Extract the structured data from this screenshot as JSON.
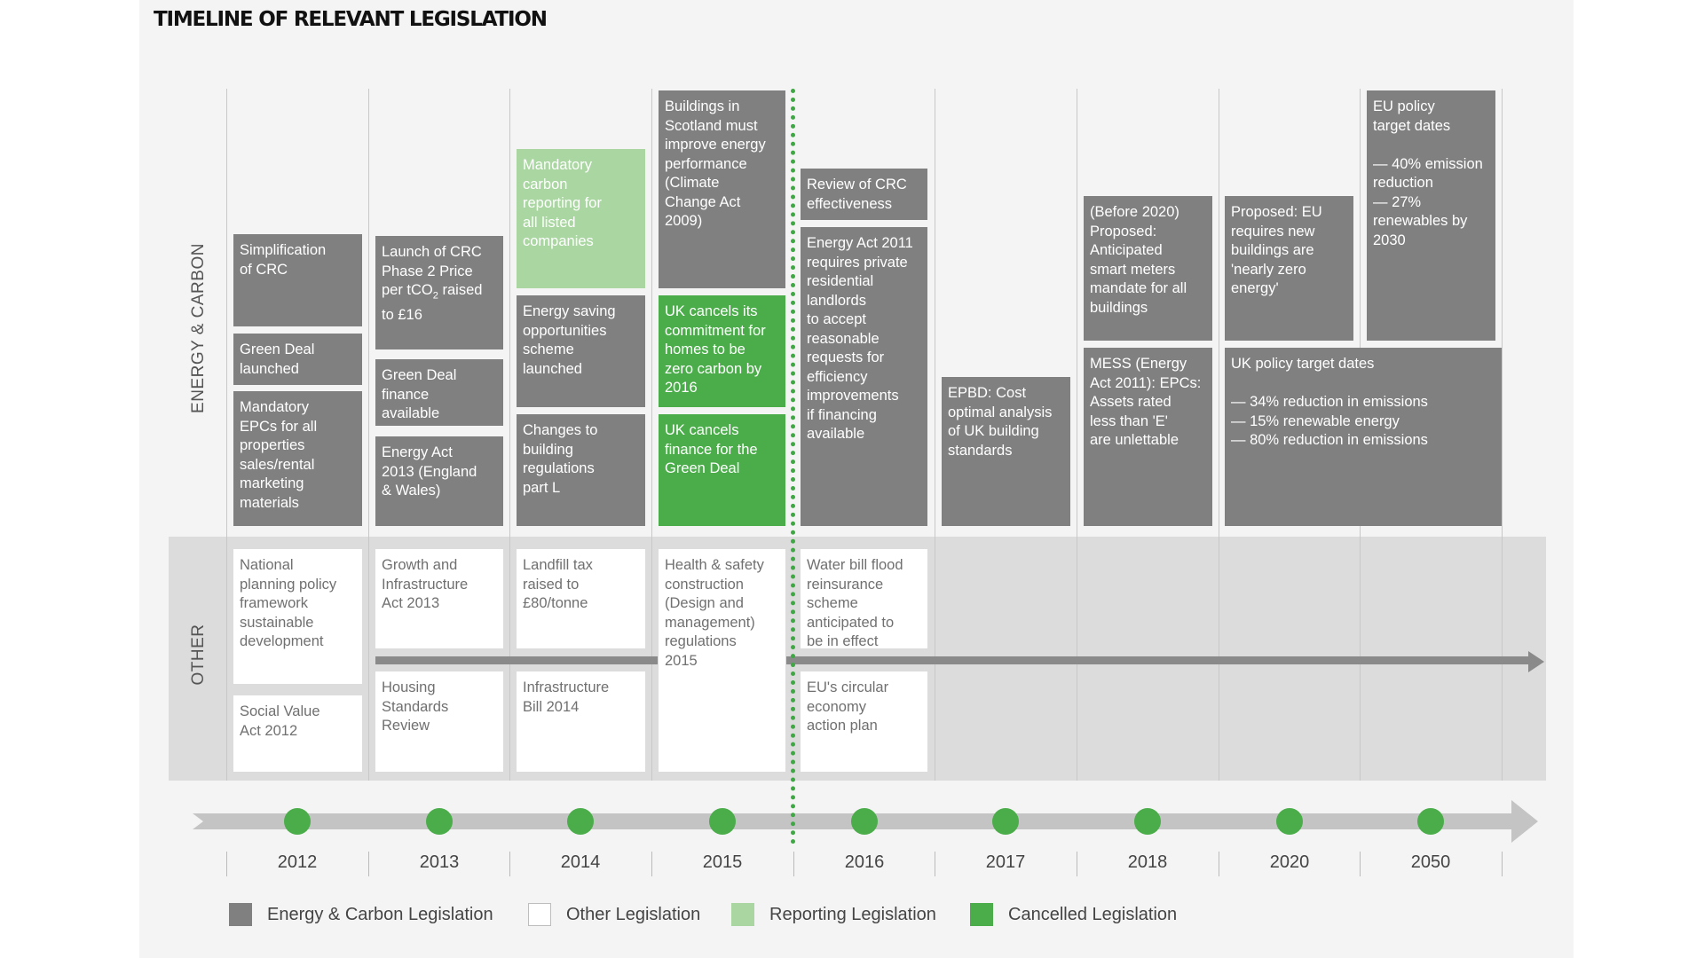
{
  "title": "TIMELINE OF RELEVANT LEGISLATION",
  "section_labels": {
    "energy": "ENERGY & CARBON",
    "other": "OTHER"
  },
  "years": [
    "2012",
    "2013",
    "2014",
    "2015",
    "2016",
    "2017",
    "2018",
    "2020",
    "2050"
  ],
  "energy_boxes": {
    "simplification_crc": "Simplification\nof CRC",
    "green_deal_launched": "Green Deal\nlaunched",
    "mandatory_epcs": "Mandatory\nEPCs for all\nproperties\nsales/rental\nmarketing\nmaterials",
    "crc_phase2_pre": "Launch of CRC\nPhase 2 Price\nper tCO",
    "crc_phase2_sub": "2",
    "crc_phase2_post": " raised\nto £16",
    "green_deal_finance": "Green Deal\nfinance\navailable",
    "energy_act_2013": "Energy Act\n2013 (England\n& Wales)",
    "mandatory_carbon_reporting": "Mandatory\ncarbon\nreporting for\nall listed\ncompanies",
    "energy_saving_scheme": "Energy saving\nopportunities\nscheme\nlaunched",
    "building_regs_part_l": "Changes to\nbuilding\nregulations\npart L",
    "scotland_buildings": "Buildings in\nScotland must\nimprove energy\nperformance\n(Climate\nChange Act\n2009)",
    "zero_carbon_cancel": "UK cancels its\ncommitment for\nhomes to be\nzero carbon by\n2016",
    "green_deal_cancel": "UK cancels\nfinance for the\nGreen Deal",
    "crc_review": "Review of CRC\neffectiveness",
    "energy_act_2011": "Energy Act 2011\nrequires private\nresidential\nlandlords\nto accept\nreasonable\nrequests for\nefficiency\nimprovements\nif financing\navailable",
    "epbd_cost_optimal": "EPBD: Cost\noptimal analysis\nof UK building\nstandards",
    "smart_meters": "(Before 2020)\nProposed:\nAnticipated\nsmart meters\nmandate for all\nbuildings",
    "mess_epcs": "MESS (Energy\nAct 2011): EPCs:\nAssets rated\nless than 'E'\nare unlettable",
    "eu_nearly_zero": "Proposed: EU\nrequires new\nbuildings are\n'nearly zero\nenergy'",
    "eu_policy_targets": "EU policy\ntarget dates\n\n— 40% emission\nreduction\n— 27%\nrenewables by\n2030",
    "uk_policy_targets": "UK policy target dates\n\n— 34% reduction in emissions\n— 15% renewable energy\n— 80% reduction in emissions"
  },
  "other_boxes": {
    "national_planning": "National\nplanning policy\nframework\nsustainable\ndevelopment",
    "social_value_act": "Social Value\nAct 2012",
    "growth_infrastructure": "Growth and\nInfrastructure\nAct 2013",
    "housing_standards": "Housing\nStandards\nReview",
    "landfill_tax": "Landfill tax\nraised to\n£80/tonne",
    "infrastructure_bill": "Infrastructure\nBill 2014",
    "health_safety": "Health & safety\nconstruction\n(Design and\nmanagement)\nregulations\n2015",
    "water_bill": "Water bill flood\nreinsurance\nscheme\nanticipated to\nbe in effect",
    "circular_economy": "EU's circular\neconomy\naction plan"
  },
  "legend": [
    {
      "key": "energy",
      "label": "Energy & Carbon Legislation"
    },
    {
      "key": "other",
      "label": "Other Legislation"
    },
    {
      "key": "reporting",
      "label": "Reporting Legislation"
    },
    {
      "key": "cancelled",
      "label": "Cancelled Legislation"
    }
  ],
  "colors": {
    "energy": "#808080",
    "reporting": "#a9d6a1",
    "cancelled": "#4aad4a",
    "other": "#ffffff",
    "timeline_dot": "#4aad4a",
    "current_marker": "#3fa844"
  }
}
